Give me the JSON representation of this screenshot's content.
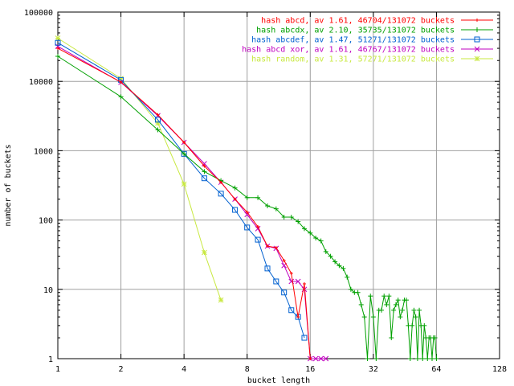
{
  "chart_data": {
    "type": "line",
    "title": "",
    "xlabel": "bucket length",
    "ylabel": "number of buckets",
    "xscale": "log2",
    "yscale": "log10",
    "xlim": [
      1,
      128
    ],
    "ylim": [
      1,
      100000
    ],
    "grid": true,
    "legend_position": "top-right",
    "x_ticks": [
      "1",
      "2",
      "4",
      "8",
      "16",
      "32",
      "64",
      "128"
    ],
    "y_ticks": [
      "1",
      "10",
      "100",
      "1000",
      "10000",
      "100000"
    ],
    "series": [
      {
        "name": "hash abcd, av 1.61, 46704/131072 buckets",
        "color": "#ff0000",
        "marker": "plus-dot",
        "x": [
          1,
          2,
          3,
          4,
          5,
          6,
          7,
          8,
          9,
          10,
          11,
          12,
          13,
          14,
          15,
          16
        ],
        "y": [
          30000,
          9800,
          3300,
          1320,
          600,
          350,
          200,
          130,
          80,
          42,
          40,
          26,
          17,
          4,
          12,
          1
        ]
      },
      {
        "name": "hash abcdx, av 2.10, 35735/131072 buckets",
        "color": "#00a000",
        "marker": "plus",
        "x": [
          1,
          2,
          3,
          4,
          5,
          6,
          7,
          8,
          9,
          10,
          11,
          12,
          13,
          14,
          15,
          16,
          17,
          18,
          19,
          20,
          21,
          22,
          23,
          24,
          25,
          26,
          27,
          28,
          29,
          30,
          31,
          32,
          33,
          34,
          35,
          36,
          37,
          38,
          39,
          40,
          41,
          42,
          43,
          44,
          45,
          46,
          47,
          48,
          49,
          50,
          51,
          52,
          53,
          54,
          55,
          56,
          57,
          58,
          59,
          60,
          61,
          62,
          63,
          64
        ],
        "y": [
          23000,
          6000,
          2000,
          900,
          500,
          370,
          290,
          210,
          210,
          160,
          145,
          110,
          110,
          95,
          75,
          65,
          55,
          50,
          35,
          30,
          25,
          22,
          20,
          15,
          10,
          9,
          9,
          6,
          4,
          1,
          8,
          4,
          1,
          5,
          5,
          8,
          6,
          8,
          2,
          5,
          6,
          7,
          4,
          5,
          7,
          7,
          3,
          1,
          3,
          5,
          4,
          1,
          5,
          3,
          1,
          3,
          2,
          1,
          2,
          2,
          1,
          2,
          2,
          1
        ]
      },
      {
        "name": "hash abcdef, av 1.47, 51271/131072 buckets",
        "color": "#0060d0",
        "marker": "square",
        "x": [
          1,
          2,
          3,
          4,
          5,
          6,
          7,
          8,
          9,
          10,
          11,
          12,
          13,
          14,
          15
        ],
        "y": [
          36000,
          10500,
          2800,
          900,
          400,
          240,
          140,
          78,
          52,
          20,
          13,
          9,
          5,
          4,
          2
        ]
      },
      {
        "name": "hash abcd xor, av 1.61, 46767/131072 buckets",
        "color": "#c000c0",
        "marker": "cross",
        "x": [
          1,
          2,
          3,
          4,
          5,
          6,
          7,
          8,
          9,
          10,
          11,
          12,
          13,
          14,
          15,
          16,
          17,
          18,
          19
        ],
        "y": [
          32000,
          9700,
          3200,
          1320,
          650,
          350,
          200,
          120,
          75,
          42,
          39,
          22,
          13,
          13,
          10,
          1,
          1,
          1,
          1
        ]
      },
      {
        "name": "hash random, av 1.31, 57271/131072 buckets",
        "color": "#c8e840",
        "marker": "star",
        "x": [
          1,
          2,
          3,
          4,
          5,
          6
        ],
        "y": [
          42000,
          11000,
          2500,
          330,
          34,
          7
        ]
      }
    ]
  }
}
